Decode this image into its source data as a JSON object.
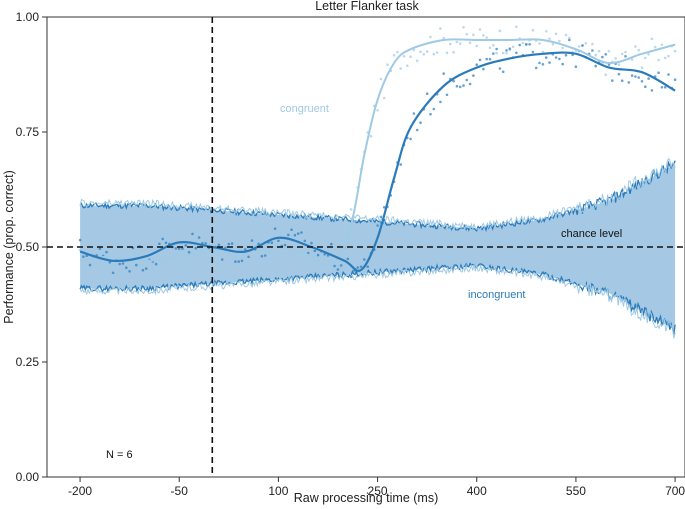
{
  "chart_data": {
    "type": "line",
    "title": "Letter Flanker task",
    "xlabel": "Raw processing time (ms)",
    "ylabel": "Performance (prop. correct)",
    "xlim": [
      -250,
      715
    ],
    "ylim": [
      0,
      1
    ],
    "xticks": [
      -200,
      -50,
      100,
      250,
      400,
      550,
      700
    ],
    "yticks": [
      0.0,
      0.25,
      0.5,
      0.75,
      1.0
    ],
    "ytick_labels": [
      "0.00",
      "0.25",
      "0.50",
      "0.75",
      "1.00"
    ],
    "chance_level": 0.5,
    "vline_x": 0,
    "annotations": {
      "congruent": "congruent",
      "incongruent": "incongruent",
      "chance": "chance level",
      "n": "N = 6"
    },
    "colors": {
      "congruent": "#9fc9e4",
      "incongruent": "#2b7bba",
      "band": "#8fbcdf"
    },
    "series": [
      {
        "name": "congruent",
        "x": [
          -200,
          -150,
          -100,
          -50,
          0,
          50,
          100,
          150,
          175,
          200,
          215,
          230,
          250,
          275,
          300,
          350,
          400,
          450,
          500,
          550,
          600,
          650,
          700
        ],
        "y": [
          0.47,
          0.48,
          0.47,
          0.48,
          0.49,
          0.5,
          0.5,
          0.48,
          0.46,
          0.5,
          0.58,
          0.7,
          0.82,
          0.9,
          0.93,
          0.95,
          0.95,
          0.95,
          0.95,
          0.93,
          0.9,
          0.92,
          0.94
        ]
      },
      {
        "name": "incongruent",
        "x": [
          -200,
          -150,
          -100,
          -50,
          0,
          50,
          100,
          150,
          200,
          225,
          250,
          275,
          300,
          350,
          400,
          450,
          500,
          550,
          600,
          650,
          700
        ],
        "y": [
          0.49,
          0.47,
          0.48,
          0.51,
          0.5,
          0.49,
          0.52,
          0.5,
          0.47,
          0.45,
          0.52,
          0.65,
          0.76,
          0.85,
          0.89,
          0.91,
          0.92,
          0.92,
          0.89,
          0.88,
          0.84
        ]
      }
    ],
    "chance_band": {
      "x": [
        -200,
        -100,
        0,
        100,
        200,
        300,
        400,
        500,
        550,
        600,
        650,
        700
      ],
      "upper": [
        0.59,
        0.59,
        0.58,
        0.57,
        0.56,
        0.55,
        0.54,
        0.56,
        0.58,
        0.6,
        0.64,
        0.68
      ],
      "lower": [
        0.41,
        0.41,
        0.42,
        0.43,
        0.44,
        0.45,
        0.46,
        0.44,
        0.42,
        0.4,
        0.36,
        0.32
      ]
    }
  }
}
